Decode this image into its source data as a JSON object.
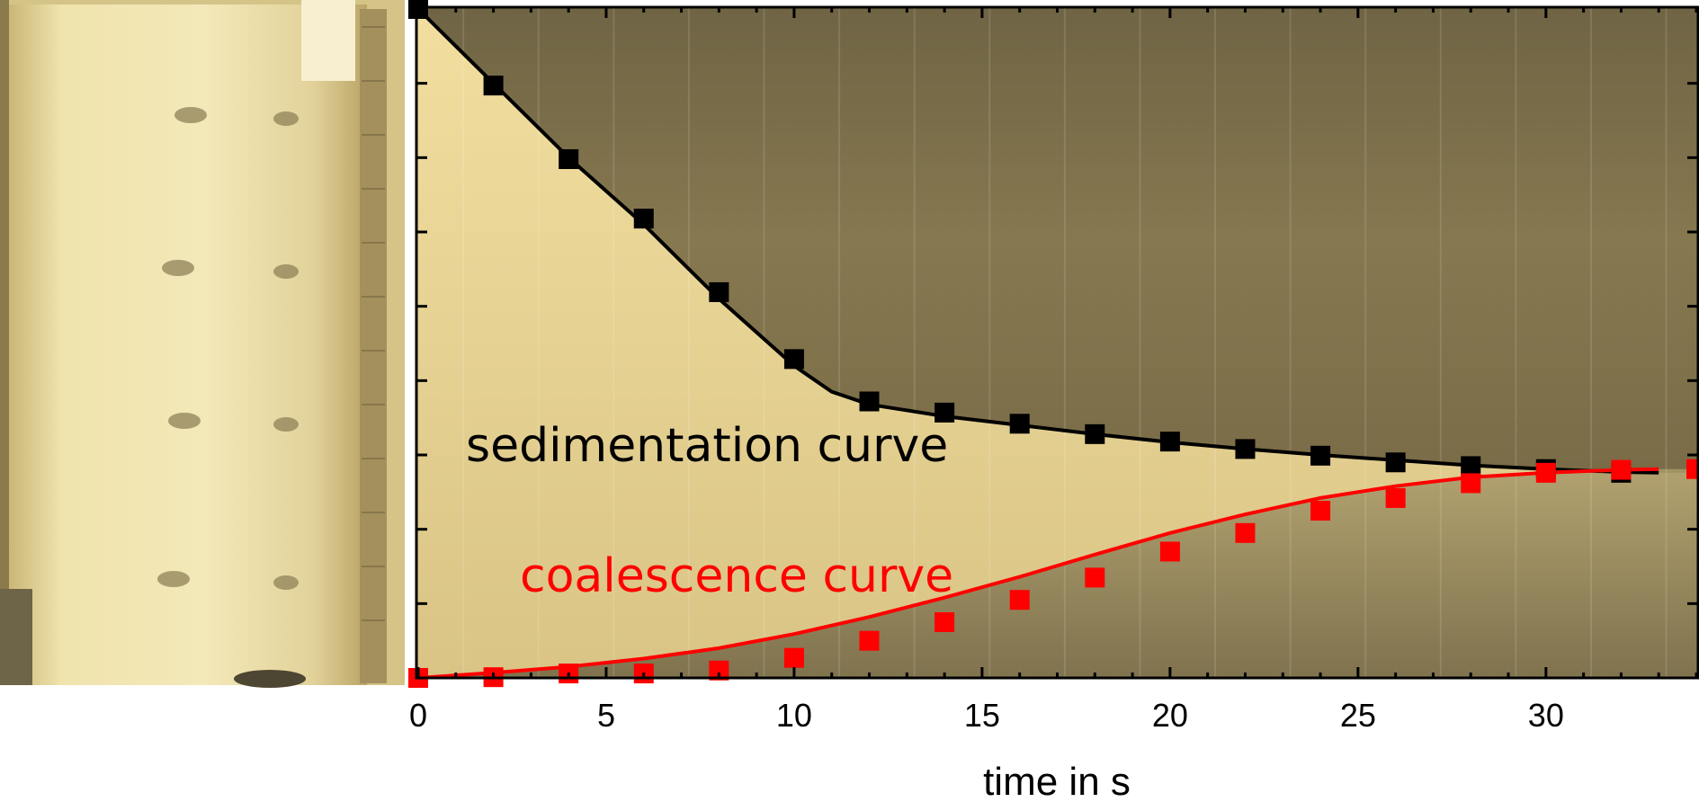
{
  "chart_data": {
    "type": "scatter",
    "xlabel": "time in s",
    "ylabel": "",
    "xlim": [
      0,
      34
    ],
    "ylim": [
      0,
      9
    ],
    "x_ticks": [
      0,
      5,
      10,
      15,
      20,
      25,
      30
    ],
    "y_ticks_labeled": false,
    "grid": false,
    "legend": "none",
    "annotations": [
      "sedimentation curve",
      "coalescence curve"
    ],
    "series": [
      {
        "color": "#000000",
        "marker": "square",
        "x": [
          0,
          2,
          4,
          6,
          8,
          10,
          12,
          14,
          16,
          18,
          20,
          22,
          24,
          26,
          28,
          30,
          32
        ],
        "y": [
          9.0,
          7.97,
          6.98,
          6.18,
          5.19,
          4.29,
          3.72,
          3.57,
          3.42,
          3.28,
          3.18,
          3.08,
          2.99,
          2.9,
          2.85,
          2.81,
          2.76
        ],
        "fit_x": [
          0,
          2,
          4,
          6,
          8,
          10,
          11,
          12,
          14,
          16,
          18,
          20,
          22,
          24,
          26,
          28,
          30,
          32,
          33
        ],
        "fit_y": [
          9.0,
          8.0,
          7.0,
          6.1,
          5.1,
          4.2,
          3.85,
          3.68,
          3.52,
          3.4,
          3.28,
          3.17,
          3.08,
          3.0,
          2.93,
          2.86,
          2.81,
          2.77,
          2.76
        ]
      },
      {
        "color": "#ff0000",
        "marker": "square",
        "x": [
          0,
          2,
          4,
          6,
          8,
          10,
          12,
          14,
          16,
          18,
          20,
          22,
          24,
          26,
          28,
          30,
          32,
          34
        ],
        "y": [
          0.0,
          0.01,
          0.06,
          0.06,
          0.1,
          0.27,
          0.5,
          0.75,
          1.05,
          1.35,
          1.7,
          1.95,
          2.25,
          2.42,
          2.62,
          2.76,
          2.8,
          2.81
        ],
        "fit_x": [
          0,
          2,
          4,
          6,
          8,
          10,
          12,
          14,
          16,
          18,
          20,
          22,
          24,
          26,
          28,
          30,
          32,
          33
        ],
        "fit_y": [
          0.0,
          0.07,
          0.15,
          0.26,
          0.4,
          0.59,
          0.82,
          1.08,
          1.36,
          1.66,
          1.95,
          2.2,
          2.42,
          2.58,
          2.7,
          2.76,
          2.8,
          2.81
        ]
      }
    ],
    "colors": {
      "axis": "#000000",
      "sedimentation": "#000000",
      "coalescence": "#ff0000",
      "photo_bright": "#e6d49a",
      "photo_dark": "#5a5038"
    }
  }
}
